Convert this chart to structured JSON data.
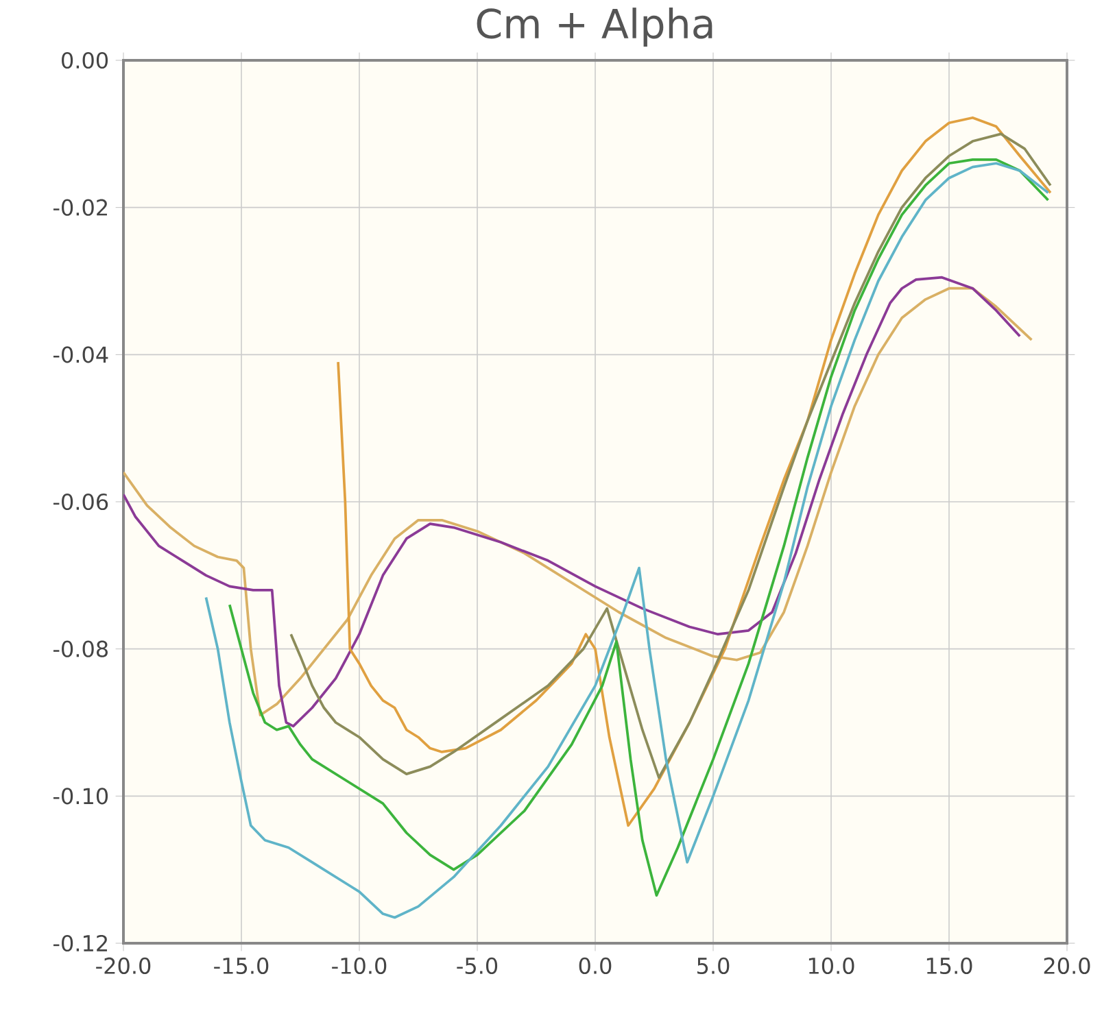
{
  "chart_data": {
    "type": "line",
    "title": "Cm + Alpha",
    "xlim": [
      -20,
      20
    ],
    "ylim": [
      -0.12,
      0
    ],
    "xticks": [
      {
        "value": -20,
        "label": "-20.0"
      },
      {
        "value": -15,
        "label": "-15.0"
      },
      {
        "value": -10,
        "label": "-10.0"
      },
      {
        "value": -5,
        "label": "-5.0"
      },
      {
        "value": 0,
        "label": "0.0"
      },
      {
        "value": 5,
        "label": "5.0"
      },
      {
        "value": 10,
        "label": "10.0"
      },
      {
        "value": 15,
        "label": "15.0"
      },
      {
        "value": 20,
        "label": "20.0"
      }
    ],
    "yticks": [
      {
        "value": -0.12,
        "label": "-0.12"
      },
      {
        "value": -0.1,
        "label": "-0.10"
      },
      {
        "value": -0.08,
        "label": "-0.08"
      },
      {
        "value": -0.06,
        "label": "-0.06"
      },
      {
        "value": -0.04,
        "label": "-0.04"
      },
      {
        "value": -0.02,
        "label": "-0.02"
      },
      {
        "value": 0,
        "label": "0.00"
      }
    ],
    "grid": true,
    "legend": false,
    "marker": "none",
    "line_style": "solid",
    "series": [
      {
        "color": "#d9b064",
        "x": [
          -20,
          -19,
          -18,
          -17,
          -16,
          -15.2,
          -14.9,
          -14.6,
          -14.2,
          -13.5,
          -12.5,
          -11.5,
          -10.5,
          -9.5,
          -8.5,
          -7.5,
          -6.5,
          -5,
          -3,
          -1,
          1,
          3,
          5,
          6,
          7,
          8,
          9,
          10,
          11,
          12,
          13,
          14,
          15,
          16,
          17,
          18.5
        ],
        "values": [
          -0.056,
          -0.0605,
          -0.0635,
          -0.066,
          -0.0675,
          -0.068,
          -0.069,
          -0.08,
          -0.089,
          -0.0875,
          -0.084,
          -0.08,
          -0.076,
          -0.07,
          -0.065,
          -0.0625,
          -0.0625,
          -0.064,
          -0.067,
          -0.071,
          -0.075,
          -0.0785,
          -0.081,
          -0.0815,
          -0.0805,
          -0.075,
          -0.066,
          -0.056,
          -0.047,
          -0.04,
          -0.035,
          -0.0325,
          -0.031,
          -0.031,
          -0.0335,
          -0.038
        ]
      },
      {
        "color": "#8b3a96",
        "x": [
          -20,
          -19.5,
          -18.5,
          -17.5,
          -16.5,
          -15.5,
          -14.5,
          -13.7,
          -13.4,
          -13.1,
          -12.8,
          -12,
          -11,
          -10,
          -9,
          -8,
          -7,
          -6,
          -4,
          -2,
          0,
          2,
          4,
          5.2,
          6.5,
          7.5,
          8.5,
          9.5,
          10.5,
          11.5,
          12.5,
          13,
          13.6,
          14.7,
          16,
          17,
          18
        ],
        "values": [
          -0.059,
          -0.062,
          -0.066,
          -0.068,
          -0.07,
          -0.0715,
          -0.072,
          -0.072,
          -0.085,
          -0.09,
          -0.0905,
          -0.088,
          -0.084,
          -0.078,
          -0.07,
          -0.065,
          -0.063,
          -0.0635,
          -0.0655,
          -0.068,
          -0.0715,
          -0.0745,
          -0.077,
          -0.078,
          -0.0775,
          -0.075,
          -0.067,
          -0.057,
          -0.048,
          -0.04,
          -0.033,
          -0.031,
          -0.0298,
          -0.0295,
          -0.031,
          -0.034,
          -0.0375
        ]
      },
      {
        "color": "#e0a040",
        "x": [
          -10.9,
          -10.6,
          -10.4,
          -10,
          -9.5,
          -9,
          -8.5,
          -8,
          -7.5,
          -7,
          -6.5,
          -5.5,
          -4,
          -2.5,
          -1,
          -0.4,
          0,
          0.6,
          1.4,
          2.5,
          4,
          5.5,
          7,
          8,
          9,
          10,
          11,
          12,
          13,
          14,
          15,
          16,
          17,
          18,
          19.3
        ],
        "values": [
          -0.041,
          -0.06,
          -0.08,
          -0.082,
          -0.085,
          -0.087,
          -0.088,
          -0.091,
          -0.092,
          -0.0935,
          -0.094,
          -0.0935,
          -0.091,
          -0.087,
          -0.082,
          -0.078,
          -0.08,
          -0.092,
          -0.104,
          -0.099,
          -0.09,
          -0.08,
          -0.066,
          -0.057,
          -0.049,
          -0.038,
          -0.029,
          -0.021,
          -0.015,
          -0.011,
          -0.0085,
          -0.0078,
          -0.009,
          -0.013,
          -0.018
        ]
      },
      {
        "color": "#8c8c5a",
        "x": [
          -12.9,
          -12.5,
          -12,
          -11.5,
          -11,
          -10,
          -9,
          -8,
          -7,
          -6,
          -4,
          -2,
          -0.5,
          0.5,
          1,
          2,
          2.7,
          4,
          5,
          6.5,
          8,
          9,
          10,
          11,
          12,
          13,
          14,
          15,
          16,
          17.2,
          18.2,
          19.3
        ],
        "values": [
          -0.078,
          -0.081,
          -0.085,
          -0.088,
          -0.09,
          -0.092,
          -0.095,
          -0.097,
          -0.096,
          -0.094,
          -0.0895,
          -0.085,
          -0.08,
          -0.0745,
          -0.08,
          -0.091,
          -0.0975,
          -0.09,
          -0.083,
          -0.072,
          -0.058,
          -0.049,
          -0.041,
          -0.033,
          -0.026,
          -0.02,
          -0.016,
          -0.013,
          -0.011,
          -0.01,
          -0.012,
          -0.017
        ]
      },
      {
        "color": "#3cb43c",
        "x": [
          -15.5,
          -15,
          -14.5,
          -14,
          -13.5,
          -13,
          -12.5,
          -12,
          -11,
          -10,
          -9,
          -8,
          -7,
          -6,
          -5,
          -3,
          -1,
          0.3,
          0.9,
          1.5,
          2,
          2.6,
          3.5,
          5,
          6.5,
          8,
          9,
          10,
          11,
          12,
          13,
          14,
          15,
          16,
          17,
          18,
          19.2
        ],
        "values": [
          -0.074,
          -0.08,
          -0.086,
          -0.09,
          -0.091,
          -0.0905,
          -0.093,
          -0.095,
          -0.097,
          -0.099,
          -0.101,
          -0.105,
          -0.108,
          -0.11,
          -0.108,
          -0.102,
          -0.093,
          -0.085,
          -0.079,
          -0.095,
          -0.106,
          -0.1135,
          -0.107,
          -0.095,
          -0.082,
          -0.066,
          -0.054,
          -0.043,
          -0.034,
          -0.027,
          -0.021,
          -0.017,
          -0.014,
          -0.0135,
          -0.0135,
          -0.015,
          -0.019
        ]
      },
      {
        "color": "#5fb4c8",
        "x": [
          -16.5,
          -16,
          -15.5,
          -15,
          -14.6,
          -14,
          -13,
          -12,
          -11,
          -10,
          -9,
          -8.5,
          -7.5,
          -6,
          -4,
          -2,
          0,
          1.2,
          1.86,
          2.3,
          3,
          3.9,
          5,
          6.5,
          8,
          9,
          10,
          11,
          12,
          13,
          14,
          15,
          16,
          17,
          18,
          19.2
        ],
        "values": [
          -0.073,
          -0.08,
          -0.09,
          -0.098,
          -0.104,
          -0.106,
          -0.107,
          -0.109,
          -0.111,
          -0.113,
          -0.116,
          -0.1165,
          -0.115,
          -0.111,
          -0.104,
          -0.096,
          -0.085,
          -0.075,
          -0.069,
          -0.08,
          -0.095,
          -0.109,
          -0.1,
          -0.087,
          -0.071,
          -0.058,
          -0.047,
          -0.038,
          -0.03,
          -0.024,
          -0.019,
          -0.016,
          -0.0145,
          -0.014,
          -0.015,
          -0.018
        ]
      }
    ]
  }
}
